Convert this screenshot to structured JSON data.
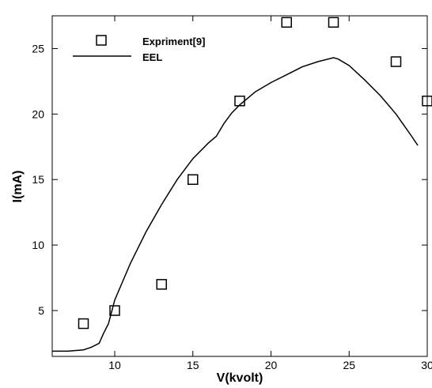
{
  "chart_data": {
    "type": "scatter",
    "title": "",
    "xlabel": "V(kvolt)",
    "ylabel": "I(mA)",
    "xlim": [
      6,
      30
    ],
    "ylim": [
      1.5,
      27.5
    ],
    "x_ticks": [
      10,
      15,
      20,
      25,
      30
    ],
    "y_ticks": [
      5,
      10,
      15,
      20,
      25
    ],
    "grid": false,
    "legend_position": "top-left",
    "series": [
      {
        "name": "Expriment[9]",
        "kind": "scatter",
        "marker": "open-square",
        "color": "#000000",
        "x": [
          8,
          10,
          13,
          15,
          18,
          21,
          24,
          28,
          30
        ],
        "y": [
          4,
          5,
          7,
          15,
          21,
          27,
          27,
          24,
          21
        ]
      },
      {
        "name": "EEL",
        "kind": "line",
        "color": "#000000",
        "x": [
          6,
          7,
          8,
          8.5,
          9,
          9.3,
          9.6,
          10,
          10.5,
          11,
          12,
          13,
          14,
          15,
          16,
          16.5,
          17,
          17.5,
          18,
          19,
          20,
          21,
          22,
          23,
          24,
          24.3,
          25,
          26,
          27,
          28,
          29,
          29.4
        ],
        "y": [
          1.9,
          1.9,
          2.0,
          2.2,
          2.5,
          3.3,
          4.0,
          5.8,
          7.2,
          8.6,
          11.0,
          13.1,
          15.0,
          16.6,
          17.8,
          18.3,
          19.3,
          20.1,
          20.7,
          21.7,
          22.4,
          23.0,
          23.6,
          24.0,
          24.3,
          24.2,
          23.7,
          22.6,
          21.4,
          20.0,
          18.3,
          17.6
        ]
      }
    ]
  }
}
